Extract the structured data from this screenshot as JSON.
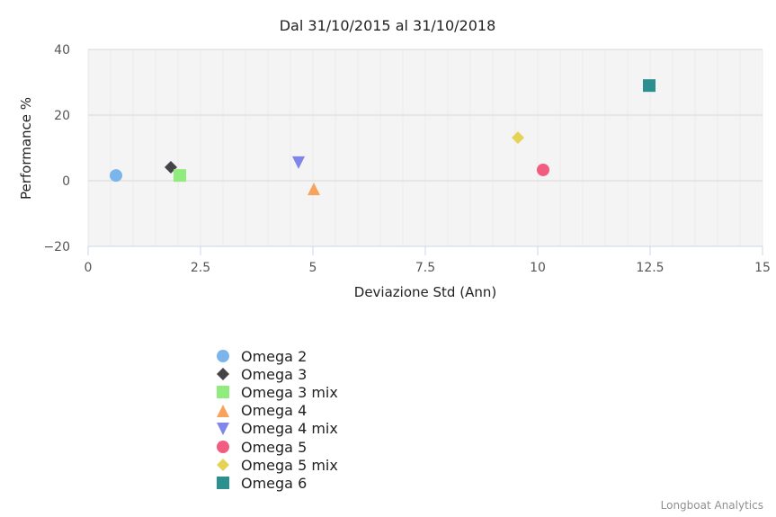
{
  "chart_data": {
    "type": "scatter",
    "title": "Dal 31/10/2015 al 31/10/2018",
    "xlabel": "Deviazione Std (Ann)",
    "ylabel": "Performance %",
    "xlim": [
      0,
      15
    ],
    "ylim": [
      -20,
      40
    ],
    "x_ticks": [
      "0",
      "2.5",
      "5",
      "7.5",
      "10",
      "12.5",
      "15"
    ],
    "y_ticks": [
      "40",
      "20",
      "0",
      "−20"
    ],
    "grid": true,
    "legend_position": "bottom-left",
    "series": [
      {
        "name": "Omega 2",
        "marker": "circle",
        "color": "#7cb5ec",
        "x": 0.62,
        "y": 1.6
      },
      {
        "name": "Omega 3",
        "marker": "diamond",
        "color": "#434348",
        "x": 1.84,
        "y": 4.1
      },
      {
        "name": "Omega 3 mix",
        "marker": "square",
        "color": "#90ed7d",
        "x": 2.04,
        "y": 1.6
      },
      {
        "name": "Omega 4",
        "marker": "triangle",
        "color": "#f7a35c",
        "x": 5.02,
        "y": -2.5
      },
      {
        "name": "Omega 4 mix",
        "marker": "triangle-down",
        "color": "#8085e9",
        "x": 4.68,
        "y": 5.5
      },
      {
        "name": "Omega 5",
        "marker": "circle",
        "color": "#f15c80",
        "x": 10.12,
        "y": 3.3
      },
      {
        "name": "Omega 5 mix",
        "marker": "diamond",
        "color": "#e4d354",
        "x": 9.56,
        "y": 13.1
      },
      {
        "name": "Omega 6",
        "marker": "square",
        "color": "#2b908f",
        "x": 12.48,
        "y": 29.0
      }
    ]
  },
  "credits": "Longboat Analytics"
}
